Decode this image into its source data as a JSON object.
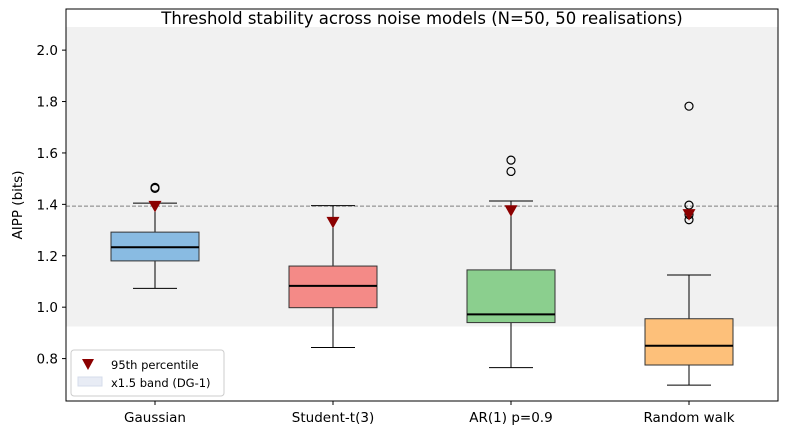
{
  "chart_data": {
    "type": "box",
    "title": "Threshold stability across noise models (N=50, 50 realisations)",
    "xlabel": "",
    "ylabel": "AIPP (bits)",
    "ylim": [
      0.635,
      2.16
    ],
    "yticks": [
      "0.8",
      "1.0",
      "1.2",
      "1.4",
      "1.6",
      "1.8",
      "2.0"
    ],
    "ytick_values": [
      0.8,
      1.0,
      1.2,
      1.4,
      1.6,
      1.8,
      2.0
    ],
    "categories": [
      "Gaussian",
      "Student-t(3)",
      "AR(1) p=0.9",
      "Random walk"
    ],
    "reference_line": 1.393,
    "band": [
      0.925,
      2.09
    ],
    "grid": false,
    "legend_position": "lower-left",
    "legend": [
      {
        "label": "95th percentile",
        "marker": "triangle-down",
        "color": "#8b0000"
      },
      {
        "label": "x1.5 band (DG-1)",
        "marker": "patch",
        "color": "#e8ecf5"
      }
    ],
    "boxes": [
      {
        "name": "Gaussian",
        "color": "#89bbe2",
        "whisker_low": 1.073,
        "q1": 1.18,
        "median": 1.233,
        "q3": 1.292,
        "whisker_high": 1.405,
        "outliers": [
          1.462,
          1.466
        ],
        "p95": 1.392
      },
      {
        "name": "Student-t(3)",
        "color": "#f48a87",
        "whisker_low": 0.843,
        "q1": 0.998,
        "median": 1.083,
        "q3": 1.16,
        "whisker_high": 1.395,
        "outliers": [],
        "p95": 1.33
      },
      {
        "name": "AR(1) p=0.9",
        "color": "#8bcf8e",
        "whisker_low": 0.765,
        "q1": 0.94,
        "median": 0.972,
        "q3": 1.145,
        "whisker_high": 1.413,
        "outliers": [
          1.528,
          1.572
        ],
        "p95": 1.375
      },
      {
        "name": "Random walk",
        "color": "#fdc07a",
        "whisker_low": 0.697,
        "q1": 0.775,
        "median": 0.85,
        "q3": 0.955,
        "whisker_high": 1.125,
        "outliers": [
          1.34,
          1.36,
          1.397,
          1.782
        ],
        "p95": 1.36
      }
    ]
  }
}
